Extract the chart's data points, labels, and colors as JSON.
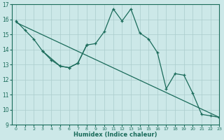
{
  "xlabel": "Humidex (Indice chaleur)",
  "bg_color": "#cce8e8",
  "line_color": "#1a6b5a",
  "grid_color": "#aacccc",
  "line1_x": [
    0,
    1,
    2,
    3,
    5,
    6,
    7,
    8,
    9,
    10,
    11,
    12,
    13,
    14,
    15,
    16,
    17,
    18,
    19,
    20,
    21,
    22,
    23
  ],
  "line1_y": [
    15.9,
    15.3,
    14.7,
    13.9,
    12.9,
    12.8,
    13.1,
    14.3,
    14.4,
    15.2,
    16.7,
    15.9,
    16.7,
    15.1,
    14.7,
    13.8,
    11.4,
    12.4,
    12.3,
    11.1,
    9.7,
    9.6,
    9.5
  ],
  "line2_x": [
    3,
    4,
    5,
    6,
    7,
    8
  ],
  "line2_y": [
    13.9,
    13.3,
    12.9,
    12.8,
    13.1,
    14.3
  ],
  "line3_x": [
    0,
    23
  ],
  "line3_y": [
    15.8,
    9.5
  ],
  "xlim": [
    -0.5,
    23
  ],
  "ylim": [
    9,
    17
  ],
  "yticks": [
    9,
    10,
    11,
    12,
    13,
    14,
    15,
    16,
    17
  ],
  "xticks": [
    0,
    1,
    2,
    3,
    4,
    5,
    6,
    7,
    8,
    9,
    10,
    11,
    12,
    13,
    14,
    15,
    16,
    17,
    18,
    19,
    20,
    21,
    22,
    23
  ]
}
